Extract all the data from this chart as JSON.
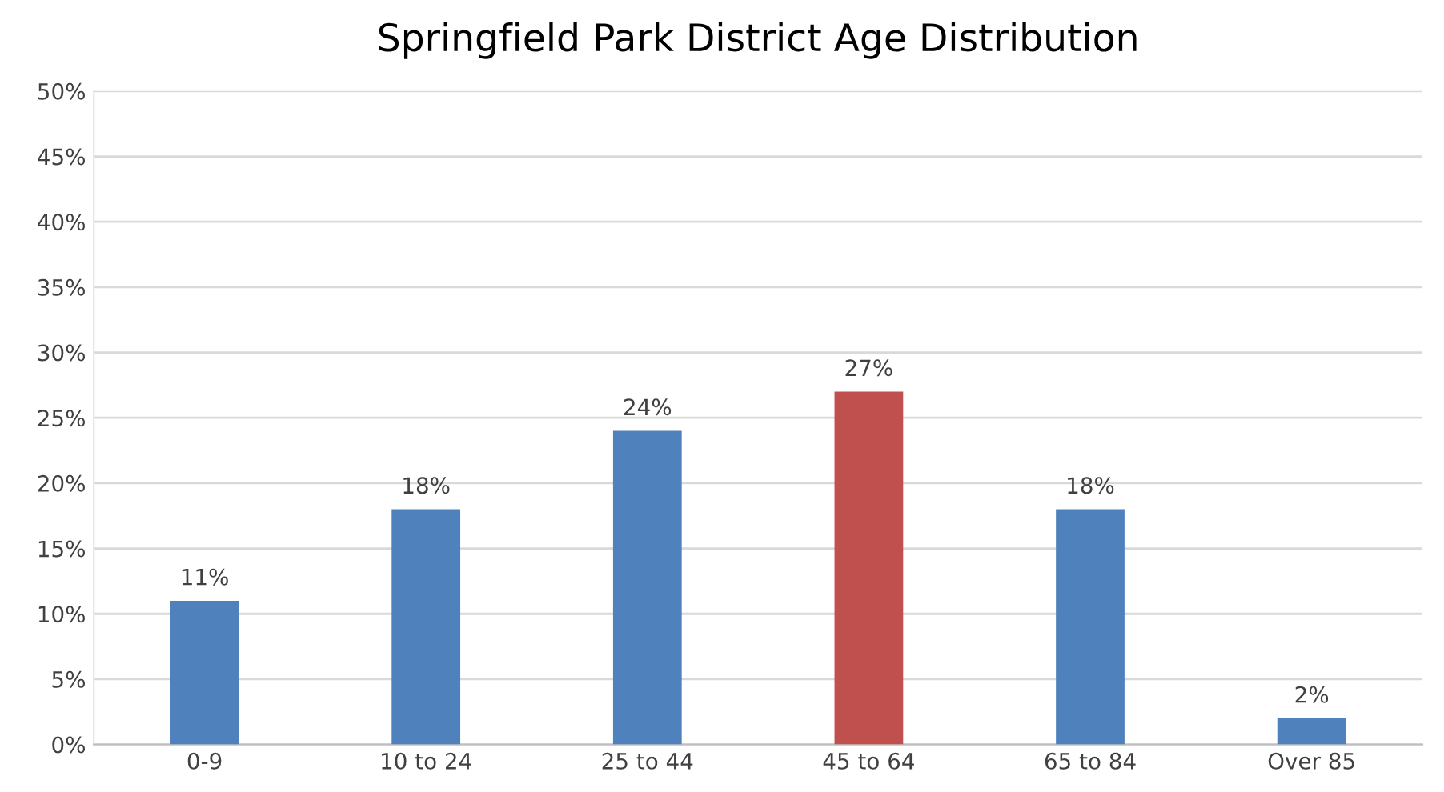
{
  "chart_data": {
    "type": "bar",
    "title": "Springfield Park District Age Distribution",
    "categories": [
      "0-9",
      "10 to 24",
      "25 to 44",
      "45 to 64",
      "65 to 84",
      "Over 85"
    ],
    "values": [
      11,
      18,
      24,
      27,
      18,
      2
    ],
    "value_labels": [
      "11%",
      "18%",
      "24%",
      "27%",
      "18%",
      "2%"
    ],
    "colors": [
      "#4f81bd",
      "#4f81bd",
      "#4f81bd",
      "#c0504d",
      "#4f81bd",
      "#4f81bd"
    ],
    "ylim": [
      0,
      50
    ],
    "yticks": [
      {
        "value": 0,
        "label": "0%"
      },
      {
        "value": 5,
        "label": "5%"
      },
      {
        "value": 10,
        "label": "10%"
      },
      {
        "value": 15,
        "label": "15%"
      },
      {
        "value": 20,
        "label": "20%"
      },
      {
        "value": 25,
        "label": "25%"
      },
      {
        "value": 30,
        "label": "30%"
      },
      {
        "value": 35,
        "label": "35%"
      },
      {
        "value": 40,
        "label": "40%"
      },
      {
        "value": 45,
        "label": "45%"
      },
      {
        "value": 50,
        "label": "50%"
      }
    ],
    "grid": "y",
    "legend": false
  }
}
